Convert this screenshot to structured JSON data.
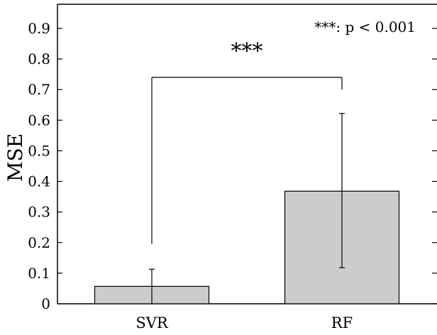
{
  "chart_data": {
    "type": "bar",
    "title": "",
    "xlabel": "",
    "ylabel": "MSE",
    "categories": [
      "SVR",
      "RF"
    ],
    "values": [
      0.057,
      0.368
    ],
    "error_bars": [
      {
        "lower": 0.0,
        "upper": 0.113
      },
      {
        "lower": 0.118,
        "upper": 0.622
      }
    ],
    "ylim": [
      0,
      0.95
    ],
    "yticks": [
      0,
      0.1,
      0.2,
      0.3,
      0.4,
      0.5,
      0.6,
      0.7,
      0.8,
      0.9
    ],
    "ytick_labels": [
      "0",
      "0.1",
      "0.2",
      "0.3",
      "0.4",
      "0.5",
      "0.6",
      "0.7",
      "0.8",
      "0.9"
    ],
    "bar_color": "#cccccc",
    "grid": false,
    "significance": {
      "label": "***",
      "from_category": "SVR",
      "to_category": "RF",
      "bracket_y": 0.74,
      "left_drop_to": 0.195,
      "right_drop_to": 0.7
    },
    "annotation": "***: p < 0.001"
  }
}
